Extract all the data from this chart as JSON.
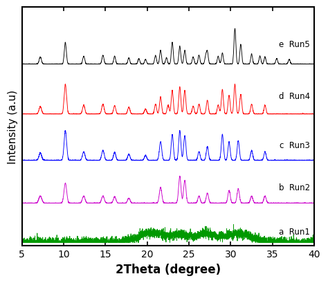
{
  "xlabel": "2Theta (degree)",
  "ylabel": "Intensity (a.u)",
  "xlim": [
    5,
    40
  ],
  "xticks": [
    5,
    10,
    15,
    20,
    25,
    30,
    35,
    40
  ],
  "colors": {
    "Run1": "#009900",
    "Run2": "#cc00cc",
    "Run3": "#0000ff",
    "Run4": "#ff0000",
    "Run5": "#000000"
  },
  "labels": [
    [
      "a",
      "Run1"
    ],
    [
      "b",
      "Run2"
    ],
    [
      "c",
      "Run3"
    ],
    [
      "d",
      "Run4"
    ],
    [
      "e",
      "Run5"
    ]
  ],
  "offsets": [
    0.0,
    0.55,
    1.15,
    1.8,
    2.5
  ],
  "background_color": "#ffffff",
  "noise_seed": 42
}
